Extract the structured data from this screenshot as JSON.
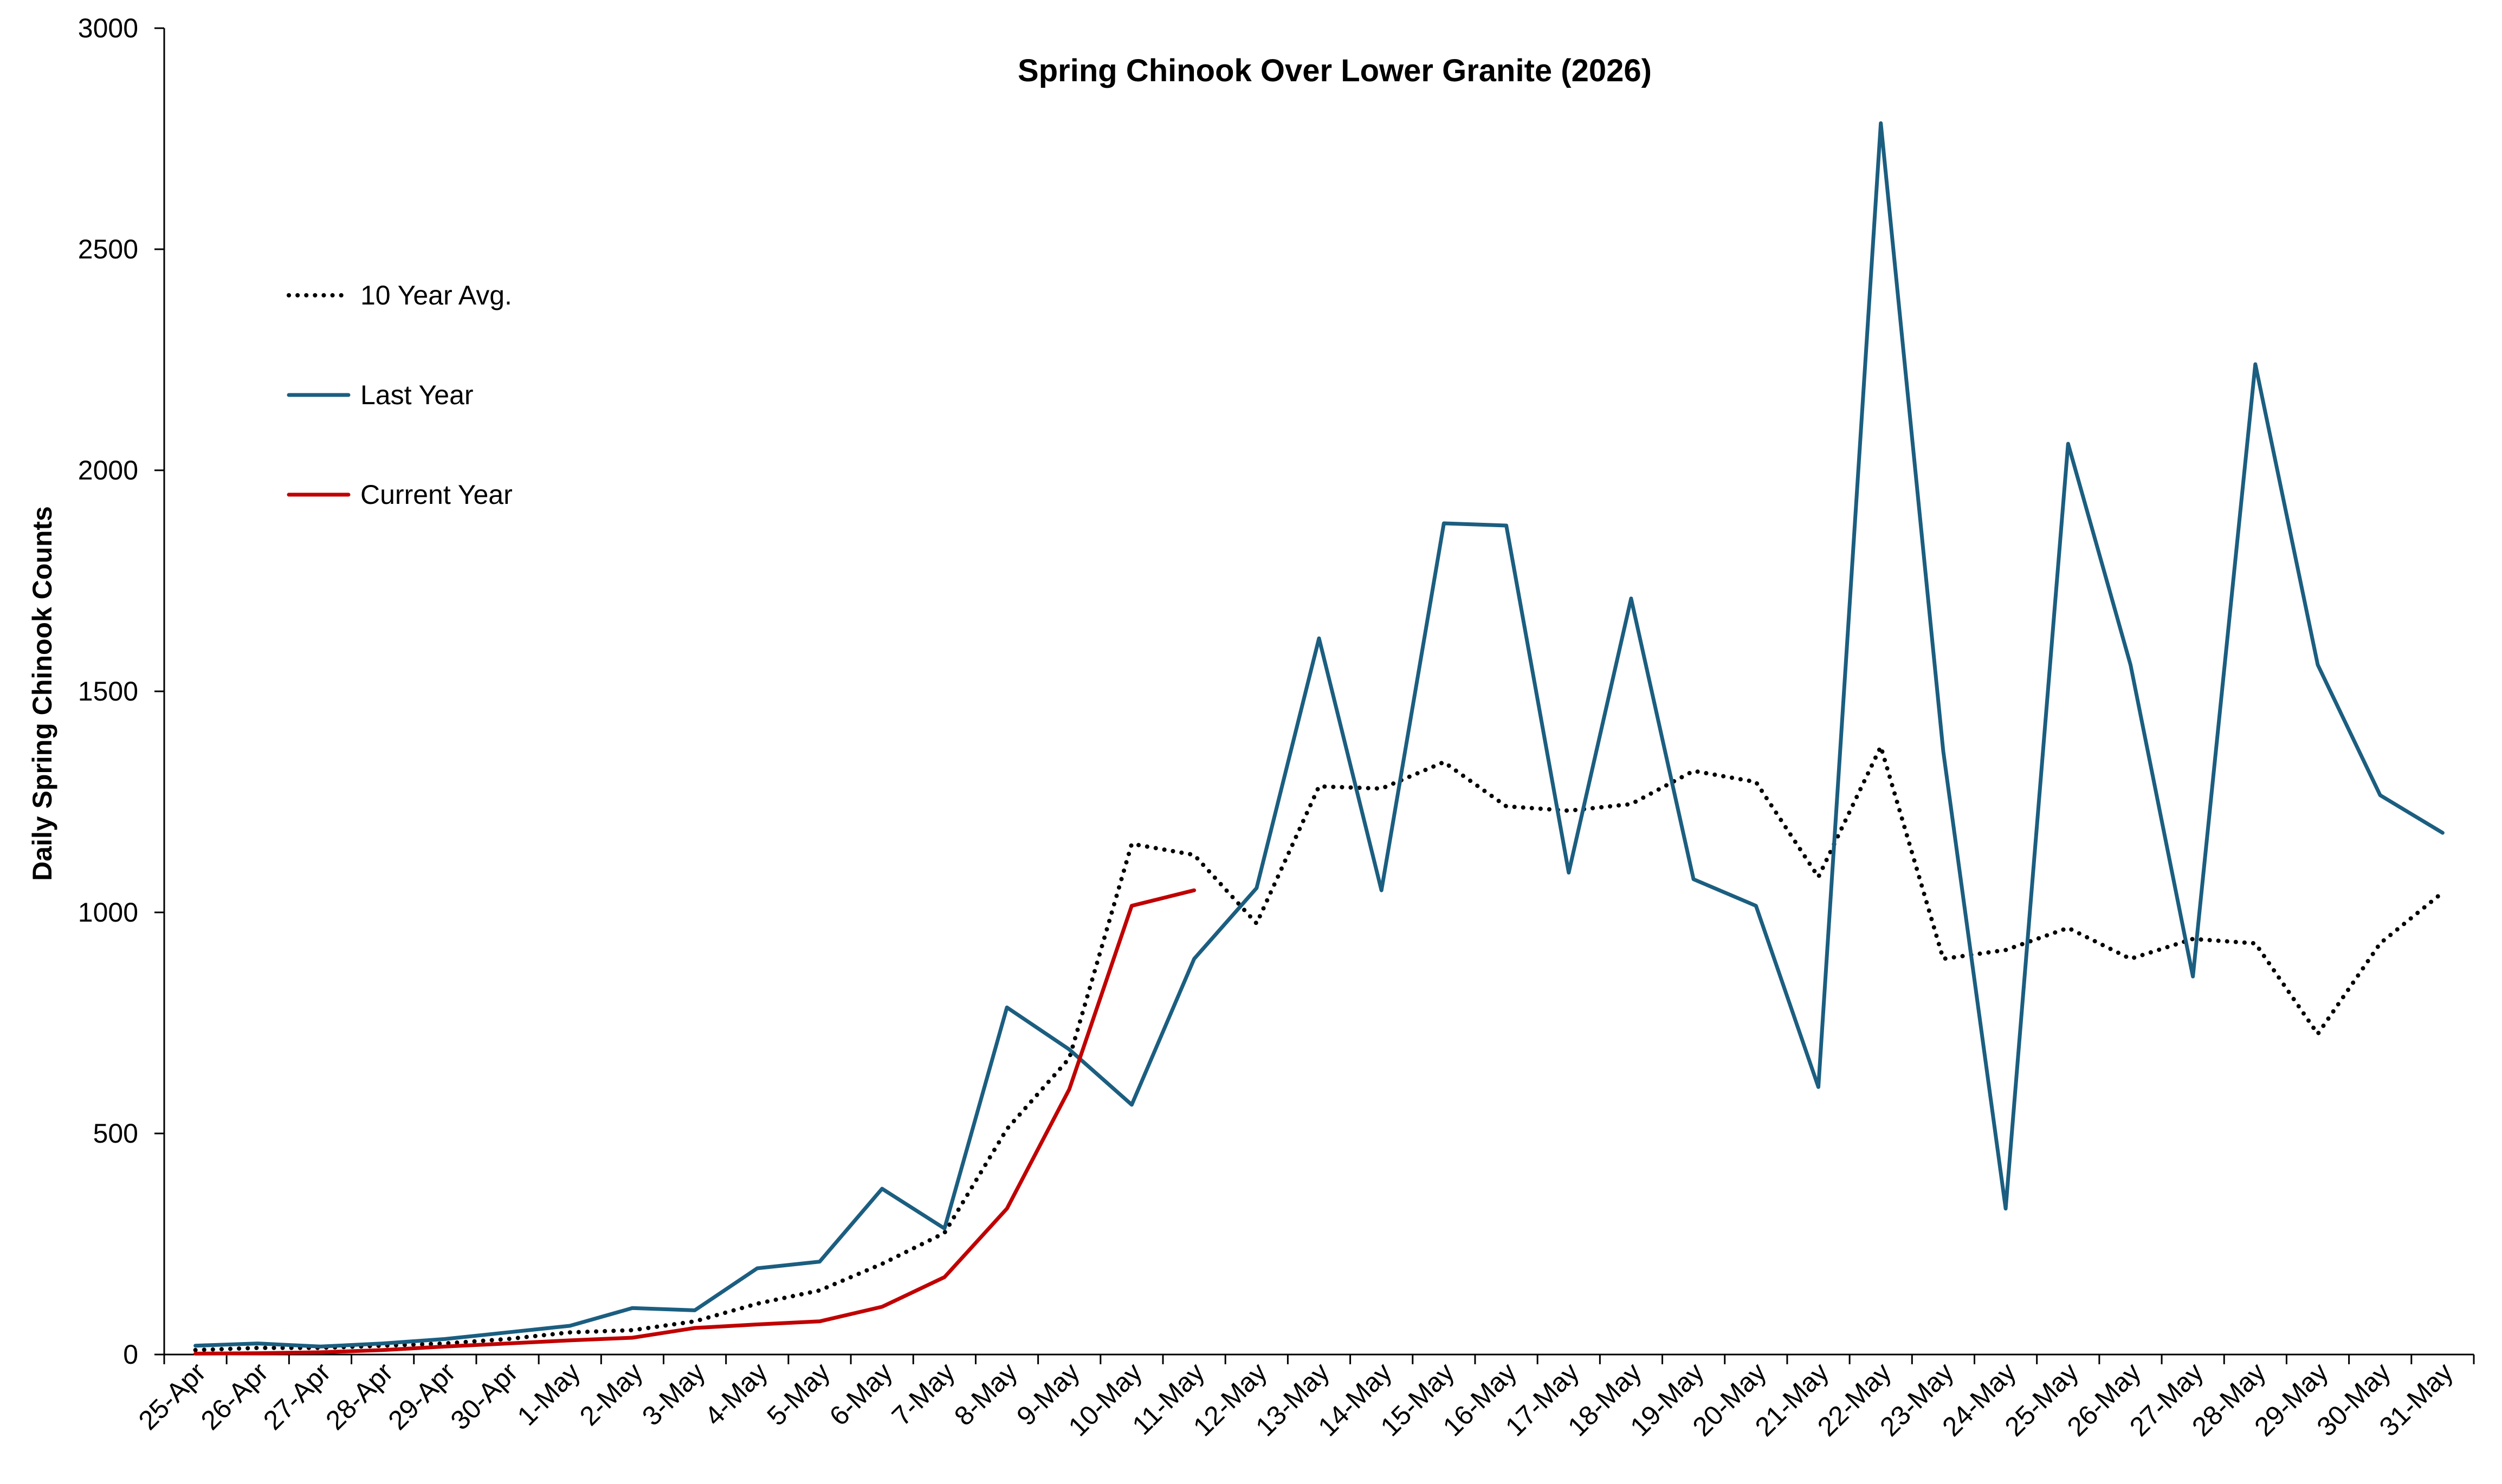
{
  "chart_data": {
    "type": "line",
    "title": "Spring Chinook Over Lower Granite (2026)",
    "xlabel": "",
    "ylabel": "Daily Spring Chinook Counts",
    "ylim": [
      0,
      3000
    ],
    "yticks": [
      0,
      500,
      1000,
      1500,
      2000,
      2500,
      3000
    ],
    "grid": false,
    "legend_position": "left",
    "categories": [
      "25-Apr",
      "26-Apr",
      "27-Apr",
      "28-Apr",
      "29-Apr",
      "30-Apr",
      "1-May",
      "2-May",
      "3-May",
      "4-May",
      "5-May",
      "6-May",
      "7-May",
      "8-May",
      "9-May",
      "10-May",
      "11-May",
      "12-May",
      "13-May",
      "14-May",
      "15-May",
      "16-May",
      "17-May",
      "18-May",
      "19-May",
      "20-May",
      "21-May",
      "22-May",
      "23-May",
      "24-May",
      "25-May",
      "26-May",
      "27-May",
      "28-May",
      "29-May",
      "30-May",
      "31-May"
    ],
    "series": [
      {
        "name": "10 Year Avg.",
        "color": "#000000",
        "style": "dotted",
        "values": [
          10,
          15,
          15,
          20,
          25,
          35,
          50,
          55,
          75,
          115,
          145,
          205,
          275,
          510,
          670,
          1155,
          1130,
          975,
          1285,
          1280,
          1340,
          1240,
          1230,
          1245,
          1320,
          1295,
          1080,
          1375,
          895,
          915,
          965,
          895,
          940,
          930,
          725,
          930,
          1045
        ]
      },
      {
        "name": "Last Year",
        "color": "#1b5e80",
        "style": "solid",
        "values": [
          20,
          25,
          18,
          25,
          35,
          50,
          65,
          105,
          100,
          195,
          210,
          375,
          285,
          785,
          690,
          565,
          895,
          1055,
          1620,
          1050,
          1880,
          1875,
          1090,
          1710,
          1075,
          1015,
          605,
          2785,
          1365,
          330,
          2060,
          1560,
          855,
          2240,
          1560,
          1265,
          1180
        ]
      },
      {
        "name": "Current Year",
        "color": "#c00000",
        "style": "solid",
        "values": [
          2,
          3,
          5,
          10,
          18,
          25,
          32,
          38,
          60,
          68,
          75,
          108,
          175,
          330,
          600,
          1015,
          1050,
          null,
          null,
          null,
          null,
          null,
          null,
          null,
          null,
          null,
          null,
          null,
          null,
          null,
          null,
          null,
          null,
          null,
          null,
          null,
          null
        ]
      }
    ]
  }
}
